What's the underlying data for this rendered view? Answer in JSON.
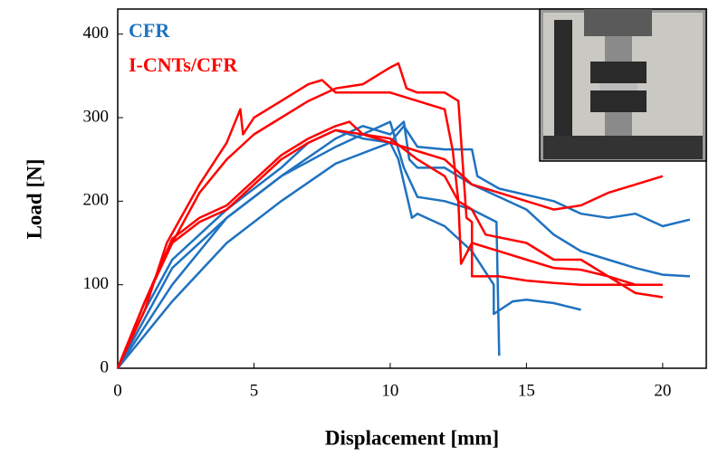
{
  "chart_data": {
    "type": "line",
    "xlabel": "Displacement  [mm]",
    "ylabel": "Load [N]",
    "xlim": [
      0,
      21.6
    ],
    "xticks": [
      0,
      5,
      10,
      15,
      20
    ],
    "ylim": [
      0,
      430
    ],
    "yticks": [
      0,
      100,
      200,
      300,
      400
    ],
    "series": [
      {
        "name": "CFR",
        "color": "#1f72c0",
        "curves": [
          {
            "x": [
              0,
              1,
              2,
              4,
              6,
              8,
              10,
              10.5,
              11,
              12,
              13,
              13.2,
              14,
              16,
              17,
              18,
              19,
              20,
              21
            ],
            "values": [
              0,
              40,
              80,
              150,
              200,
              245,
              270,
              290,
              265,
              262,
              262,
              230,
              215,
              200,
              185,
              180,
              185,
              170,
              178
            ]
          },
          {
            "x": [
              0,
              1,
              2,
              4,
              6,
              8,
              9,
              10,
              10.5,
              10.7,
              11,
              12,
              13,
              14,
              15,
              16,
              17,
              18,
              19,
              20,
              21
            ],
            "values": [
              0,
              60,
              120,
              180,
              230,
              275,
              290,
              280,
              295,
              250,
              240,
              240,
              220,
              205,
              190,
              160,
              140,
              130,
              120,
              112,
              110
            ]
          },
          {
            "x": [
              0,
              1,
              2,
              4,
              6,
              7,
              8,
              9,
              10,
              10.3,
              10.8,
              11,
              12,
              13,
              13.8,
              13.8,
              14.5,
              15,
              16,
              17
            ],
            "values": [
              0,
              70,
              130,
              190,
              240,
              270,
              285,
              275,
              270,
              250,
              180,
              185,
              170,
              140,
              100,
              65,
              80,
              82,
              78,
              70
            ]
          },
          {
            "x": [
              0,
              1,
              2,
              4,
              6,
              8,
              10,
              10.5,
              11,
              12,
              13,
              13.9,
              14
            ],
            "values": [
              0,
              50,
              100,
              180,
              230,
              265,
              295,
              240,
              205,
              200,
              190,
              175,
              15
            ]
          }
        ]
      },
      {
        "name": "I-CNTs/CFR",
        "color": "#ff0000",
        "curves": [
          {
            "x": [
              0,
              0.5,
              1,
              2,
              3,
              4,
              5,
              6,
              7,
              8,
              9,
              10,
              10.3,
              10.6,
              11,
              12,
              12.5,
              12.8,
              13,
              13,
              14,
              15,
              16,
              17,
              18,
              19,
              20
            ],
            "values": [
              0,
              40,
              80,
              150,
              210,
              250,
              280,
              300,
              320,
              335,
              340,
              360,
              365,
              335,
              330,
              330,
              320,
              180,
              175,
              110,
              110,
              105,
              102,
              100,
              100,
              100,
              100
            ]
          },
          {
            "x": [
              0,
              1,
              1.8,
              3,
              4,
              4.5,
              4.6,
              5,
              6,
              7,
              7.5,
              8,
              9,
              10,
              11,
              12,
              12.3,
              12.5,
              12.6,
              13,
              14,
              15,
              16,
              17,
              18,
              19,
              20
            ],
            "values": [
              0,
              70,
              150,
              220,
              270,
              310,
              280,
              300,
              320,
              340,
              345,
              330,
              330,
              330,
              320,
              310,
              260,
              200,
              125,
              150,
              140,
              130,
              120,
              118,
              110,
              90,
              85
            ]
          },
          {
            "x": [
              0,
              1,
              2,
              3,
              4,
              5,
              6,
              7,
              8,
              9,
              10,
              11,
              12,
              13,
              14,
              15,
              16,
              17,
              18,
              19,
              20
            ],
            "values": [
              0,
              80,
              150,
              175,
              190,
              220,
              250,
              270,
              285,
              280,
              270,
              260,
              250,
              220,
              210,
              200,
              190,
              195,
              210,
              220,
              230
            ]
          },
          {
            "x": [
              0,
              1,
              2,
              3,
              4,
              5,
              6,
              7,
              8,
              8.5,
              9,
              10,
              11,
              12,
              12.5,
              13,
              13.5,
              15,
              16,
              17,
              18,
              19
            ],
            "values": [
              0,
              80,
              155,
              180,
              195,
              225,
              255,
              275,
              290,
              295,
              280,
              275,
              250,
              230,
              200,
              190,
              160,
              150,
              130,
              130,
              110,
              100
            ]
          }
        ]
      }
    ]
  }
}
